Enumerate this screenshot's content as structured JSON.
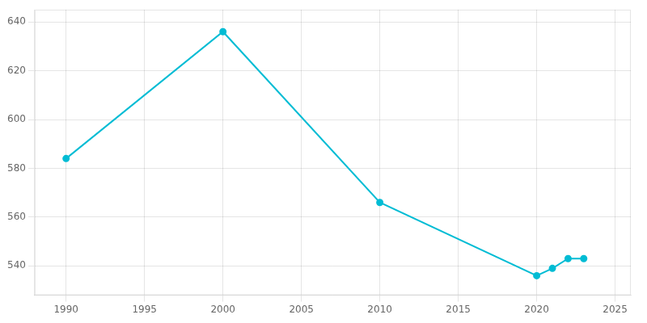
{
  "chart_data": {
    "type": "line",
    "x": [
      1990,
      2000,
      2010,
      2020,
      2021,
      2022,
      2023
    ],
    "values": [
      584,
      636,
      566,
      536,
      539,
      543,
      543
    ],
    "color": "#00bcd4",
    "marker": "circle",
    "xlim": [
      1988,
      2026
    ],
    "xticks": [
      1990,
      1995,
      2000,
      2005,
      2010,
      2015,
      2020,
      2025
    ],
    "ylim": [
      528,
      645
    ],
    "yticks": [
      540,
      560,
      580,
      600,
      620,
      640
    ],
    "grid": true
  }
}
